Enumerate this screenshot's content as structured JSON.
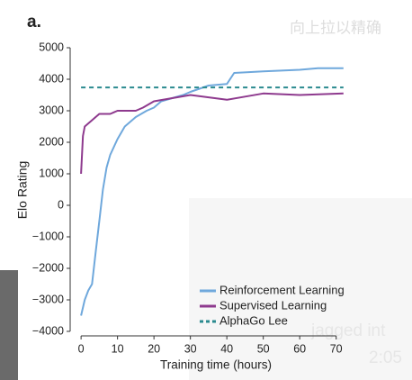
{
  "chart_data": {
    "type": "line",
    "panel_label": "a.",
    "ylabel": "Elo Rating",
    "xlabel": "Training time (hours)",
    "xlim": [
      -2.5,
      76
    ],
    "xticks": [
      0,
      10,
      20,
      30,
      40,
      50,
      60,
      70
    ],
    "ylim": [
      -4000,
      5000
    ],
    "yticks": [
      {
        "value": -4000,
        "label": "−4000"
      },
      {
        "value": -3000,
        "label": "−3000"
      },
      {
        "value": -2000,
        "label": "−2000"
      },
      {
        "value": -1000,
        "label": "−1000"
      },
      0,
      1000,
      2000,
      3000,
      4000,
      5000
    ],
    "series": [
      {
        "name": "Reinforcement Learning",
        "color": "#6fa8dc",
        "dashed": false,
        "x": [
          0,
          1,
          2,
          3,
          4,
          5,
          6,
          7,
          8,
          10,
          12,
          15,
          18,
          20,
          22,
          25,
          28,
          30,
          35,
          40,
          42,
          50,
          60,
          65,
          72
        ],
        "values": [
          -3500,
          -3000,
          -2700,
          -2500,
          -1500,
          -500,
          500,
          1200,
          1600,
          2100,
          2500,
          2800,
          3000,
          3100,
          3300,
          3400,
          3500,
          3600,
          3800,
          3850,
          4200,
          4250,
          4300,
          4350,
          4350
        ]
      },
      {
        "name": "Supervised Learning",
        "color": "#8e3a8e",
        "dashed": false,
        "x": [
          0,
          0.5,
          1,
          3,
          5,
          8,
          10,
          15,
          17,
          20,
          25,
          30,
          40,
          45,
          50,
          60,
          72
        ],
        "values": [
          1000,
          2200,
          2500,
          2700,
          2900,
          2900,
          3000,
          3000,
          3100,
          3300,
          3400,
          3500,
          3350,
          3450,
          3550,
          3500,
          3550
        ]
      },
      {
        "name": "AlphaGo Lee",
        "color": "#2a8a8f",
        "dashed": true,
        "x": [
          0,
          72
        ],
        "values": [
          3740,
          3740
        ]
      }
    ]
  },
  "overlay": [
    "向上拉以精确",
    "jagged int",
    "2:05"
  ]
}
